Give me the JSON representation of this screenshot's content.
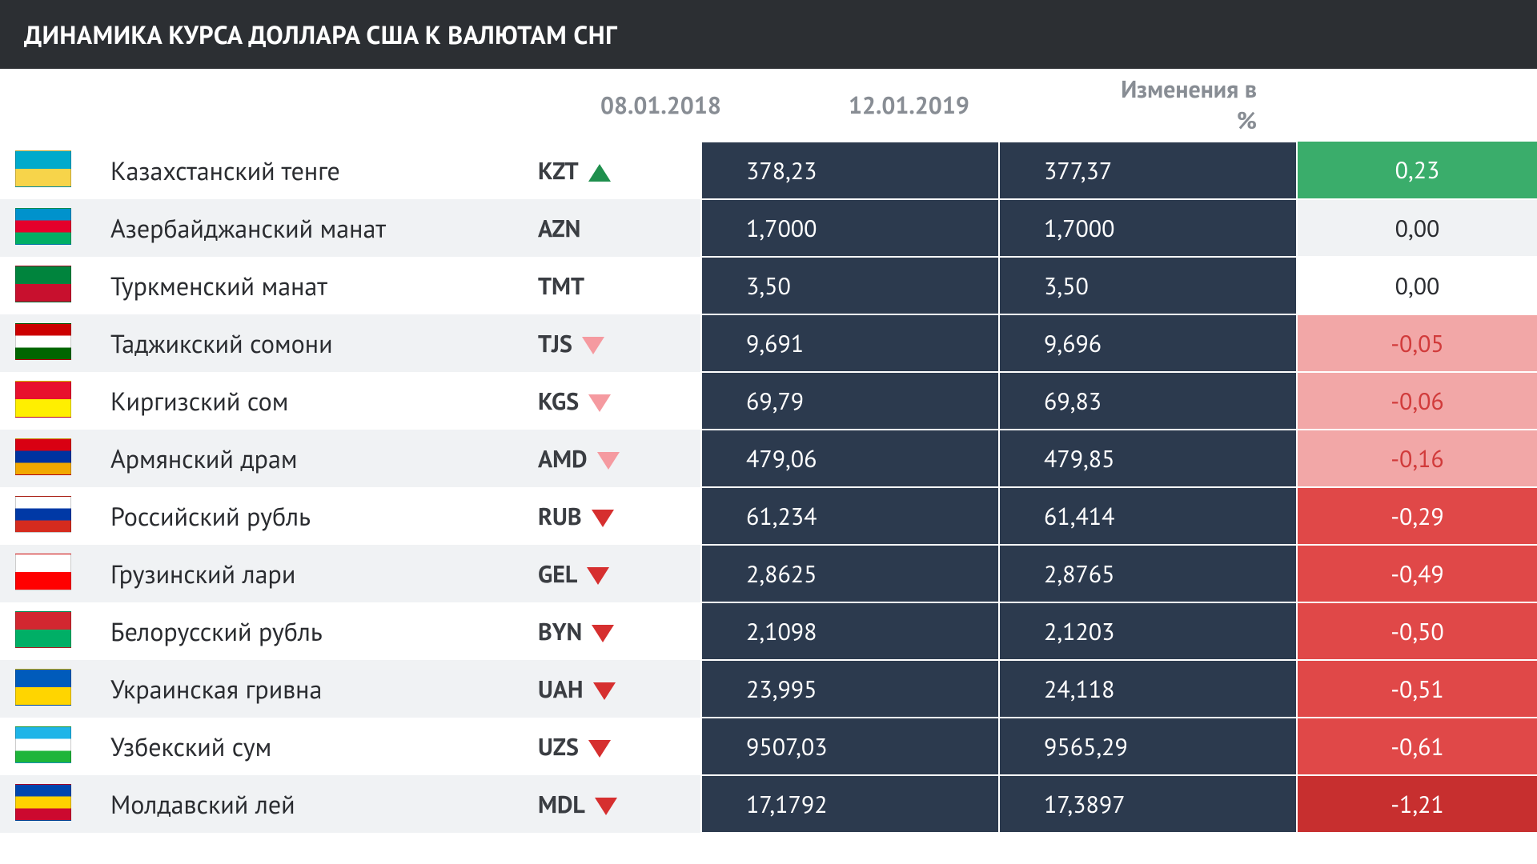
{
  "title": "ДИНАМИКА КУРСА ДОЛЛАРА США К ВАЛЮТАМ СНГ",
  "colors": {
    "title_bg": "#2c2f33",
    "header_text": "#888d94",
    "name_text": "#2a2c30",
    "code_text": "#3a3d42",
    "value_bg": "#2c3a4e",
    "value_text": "#ffffff",
    "row_stripe": "#f0f2f4",
    "up_bg": "#3aad6b",
    "up_text": "#ffffff",
    "neutral_text": "#2a2c30",
    "down_light_bg": "#f2a7a7",
    "down_light_text": "#d13b3b",
    "down_mid_bg": "#e04848",
    "down_dark_bg": "#c72f2f",
    "down_text": "#ffffff",
    "arrow_up": "#1f8f4d",
    "arrow_pink": "#f59aa0",
    "arrow_red": "#d62f2f"
  },
  "headers": {
    "date1": "08.01.2018",
    "date2": "12.01.2019",
    "change": "Изменения в %"
  },
  "rows": [
    {
      "name": "Казахстанский тенге",
      "code": "KZT",
      "v1": "378,23",
      "v2": "377,37",
      "change": "0,23",
      "dir": "up",
      "flag_colors": [
        "#00aacc",
        "#f7d44a"
      ]
    },
    {
      "name": "Азербайджанский манат",
      "code": "AZN",
      "v1": "1,7000",
      "v2": "1,7000",
      "change": "0,00",
      "dir": "none",
      "flag_colors": [
        "#0092cc",
        "#e4002b",
        "#00ae65"
      ]
    },
    {
      "name": "Туркменский манат",
      "code": "TMT",
      "v1": "3,50",
      "v2": "3,50",
      "change": "0,00",
      "dir": "none",
      "flag_colors": [
        "#00843d",
        "#c8102e"
      ]
    },
    {
      "name": "Таджикский сомони",
      "code": "TJS",
      "v1": "9,691",
      "v2": "9,696",
      "change": "-0,05",
      "dir": "down_light",
      "flag_colors": [
        "#cc0000",
        "#ffffff",
        "#006600"
      ]
    },
    {
      "name": "Киргизский сом",
      "code": "KGS",
      "v1": "69,79",
      "v2": "69,83",
      "change": "-0,06",
      "dir": "down_light",
      "flag_colors": [
        "#e8112d",
        "#ffef00"
      ]
    },
    {
      "name": "Армянский драм",
      "code": "AMD",
      "v1": "479,06",
      "v2": "479,85",
      "change": "-0,16",
      "dir": "down_light",
      "flag_colors": [
        "#d90012",
        "#0033a0",
        "#f2a800"
      ]
    },
    {
      "name": "Российский рубль",
      "code": "RUB",
      "v1": "61,234",
      "v2": "61,414",
      "change": "-0,29",
      "dir": "down_mid",
      "flag_colors": [
        "#ffffff",
        "#0039a6",
        "#d52b1e"
      ]
    },
    {
      "name": "Грузинский лари",
      "code": "GEL",
      "v1": "2,8625",
      "v2": "2,8765",
      "change": "-0,49",
      "dir": "down_mid",
      "flag_colors": [
        "#ffffff",
        "#ff0000"
      ]
    },
    {
      "name": "Белорусский рубль",
      "code": "BYN",
      "v1": "2,1098",
      "v2": "2,1203",
      "change": "-0,50",
      "dir": "down_mid",
      "flag_colors": [
        "#d22730",
        "#00af66"
      ]
    },
    {
      "name": "Украинская гривна",
      "code": "UAH",
      "v1": "23,995",
      "v2": "24,118",
      "change": "-0,51",
      "dir": "down_mid",
      "flag_colors": [
        "#005bbb",
        "#ffd500"
      ]
    },
    {
      "name": "Узбекский сум",
      "code": "UZS",
      "v1": "9507,03",
      "v2": "9565,29",
      "change": "-0,61",
      "dir": "down_mid",
      "flag_colors": [
        "#1eb5e8",
        "#ffffff",
        "#1eb53a"
      ]
    },
    {
      "name": "Молдавский лей",
      "code": "MDL",
      "v1": "17,1792",
      "v2": "17,3897",
      "change": "-1,21",
      "dir": "down_dark",
      "flag_colors": [
        "#0046ae",
        "#ffd200",
        "#cc092f"
      ]
    }
  ]
}
